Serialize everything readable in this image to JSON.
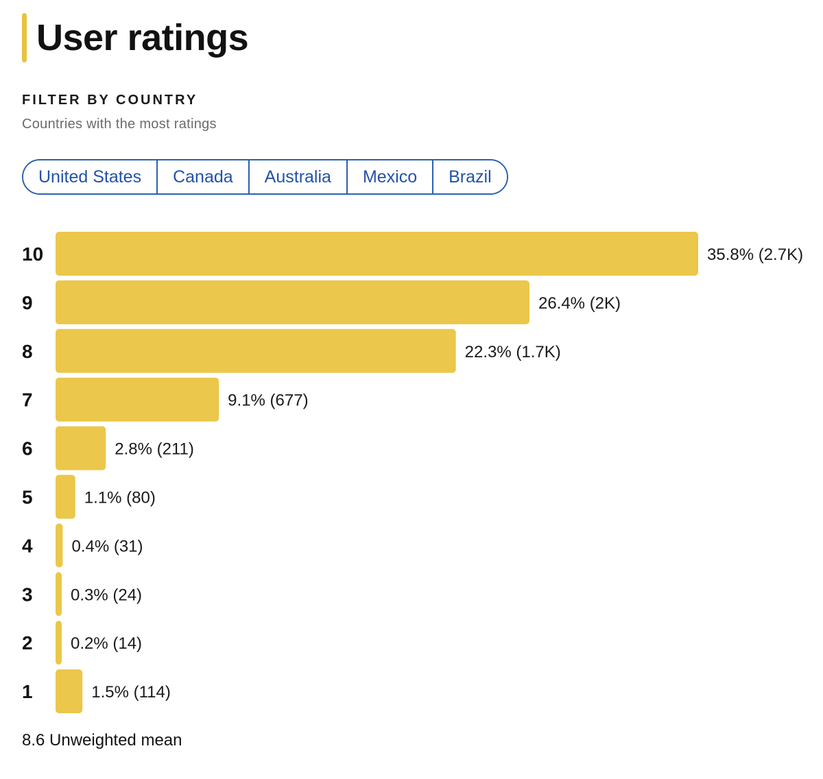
{
  "header": {
    "title": "User ratings"
  },
  "filter": {
    "heading": "FILTER BY COUNTRY",
    "subheading": "Countries with the most ratings",
    "countries": [
      "United States",
      "Canada",
      "Australia",
      "Mexico",
      "Brazil"
    ]
  },
  "chart_data": {
    "type": "bar",
    "orientation": "horizontal",
    "title": "",
    "categories": [
      "10",
      "9",
      "8",
      "7",
      "6",
      "5",
      "4",
      "3",
      "2",
      "1"
    ],
    "values": [
      35.8,
      26.4,
      22.3,
      9.1,
      2.8,
      1.1,
      0.4,
      0.3,
      0.2,
      1.5
    ],
    "counts": [
      "2.7K",
      "2K",
      "1.7K",
      "677",
      "211",
      "80",
      "31",
      "24",
      "14",
      "114"
    ],
    "value_labels": [
      "35.8% (2.7K)",
      "26.4% (2K)",
      "22.3% (1.7K)",
      "9.1% (677)",
      "2.8% (211)",
      "1.1% (80)",
      "0.4% (31)",
      "0.3% (24)",
      "0.2% (14)",
      "1.5% (114)"
    ],
    "unit": "%",
    "bar_color": "#ebc74b",
    "grid": false,
    "legend": "none"
  },
  "summary": {
    "mean_label": "8.6 Unweighted mean"
  },
  "colors": {
    "accent": "#e8c340",
    "link": "#2352a8"
  }
}
